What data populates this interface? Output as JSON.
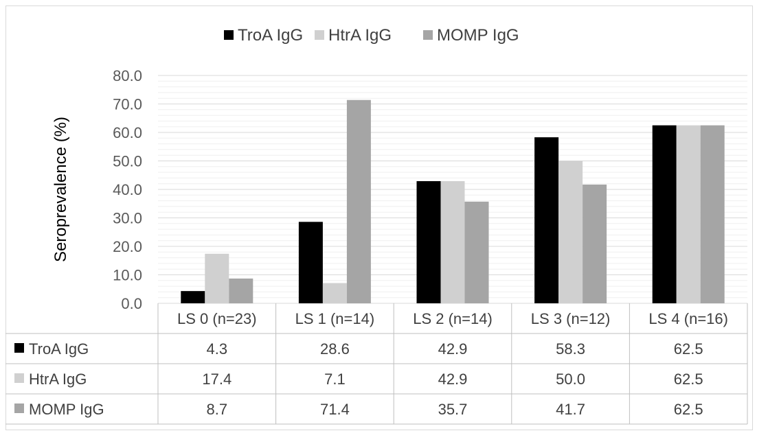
{
  "chart_data": {
    "type": "bar",
    "title": "",
    "xlabel": "",
    "ylabel": "Seroprevalence (%)",
    "ylim": [
      0,
      80
    ],
    "yticks": [
      "0.0",
      "10.0",
      "20.0",
      "30.0",
      "40.0",
      "50.0",
      "60.0",
      "70.0",
      "80.0"
    ],
    "grid": true,
    "legend_position": "top",
    "categories": [
      "LS 0 (n=23)",
      "LS 1 (n=14)",
      "LS 2 (n=14)",
      "LS 3 (n=12)",
      "LS 4 (n=16)"
    ],
    "series": [
      {
        "name": "TroA IgG",
        "color": "#000000",
        "values": [
          4.3,
          28.6,
          42.9,
          58.3,
          62.5
        ],
        "labels": [
          "4.3",
          "28.6",
          "42.9",
          "58.3",
          "62.5"
        ]
      },
      {
        "name": "HtrA IgG",
        "color": "#d0d0d0",
        "values": [
          17.4,
          7.1,
          42.9,
          50.0,
          62.5
        ],
        "labels": [
          "17.4",
          "7.1",
          "42.9",
          "50.0",
          "62.5"
        ]
      },
      {
        "name": "MOMP IgG",
        "color": "#a5a5a5",
        "values": [
          8.7,
          71.4,
          35.7,
          41.7,
          62.5
        ],
        "labels": [
          "8.7",
          "71.4",
          "35.7",
          "41.7",
          "62.5"
        ]
      }
    ],
    "data_table": true
  }
}
